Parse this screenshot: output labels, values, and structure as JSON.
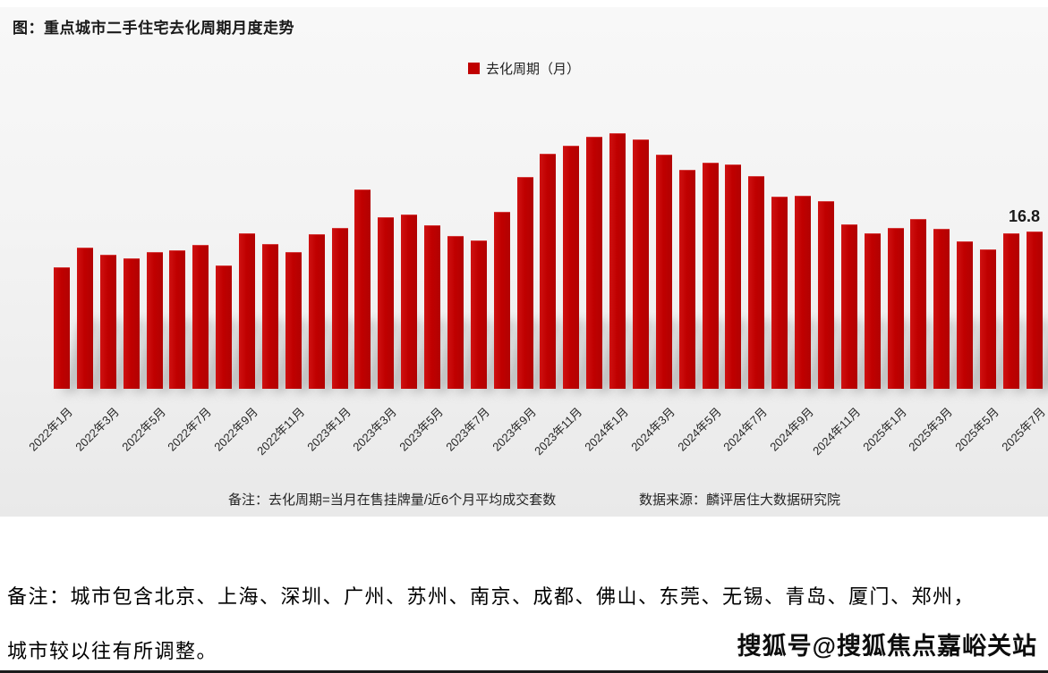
{
  "chart": {
    "title": "图：重点城市二手住宅去化周期月度走势",
    "legend_label": "去化周期（月）",
    "note_left": "备注：去化周期=当月在售挂牌量/近6个月平均成交套数",
    "source": "数据来源：麟评居住大数据研究院",
    "last_value_label": "16.8",
    "bar_color": "#c00000"
  },
  "chart_data": {
    "type": "bar",
    "title": "图：重点城市二手住宅去化周期月度走势",
    "series_name": "去化周期（月）",
    "x": [
      "2022年1月",
      "2022年2月",
      "2022年3月",
      "2022年4月",
      "2022年5月",
      "2022年6月",
      "2022年7月",
      "2022年8月",
      "2022年9月",
      "2022年10月",
      "2022年11月",
      "2022年12月",
      "2023年1月",
      "2023年2月",
      "2023年3月",
      "2023年4月",
      "2023年5月",
      "2023年6月",
      "2023年7月",
      "2023年8月",
      "2023年9月",
      "2023年10月",
      "2023年11月",
      "2023年12月",
      "2024年1月",
      "2024年2月",
      "2024年3月",
      "2024年4月",
      "2024年5月",
      "2024年6月",
      "2024年7月",
      "2024年8月",
      "2024年9月",
      "2024年10月",
      "2024年11月",
      "2024年12月",
      "2025年1月",
      "2025年2月",
      "2025年3月",
      "2025年4月",
      "2025年5月",
      "2025年6月",
      "2025年7月"
    ],
    "values": [
      13.0,
      15.1,
      14.3,
      13.9,
      14.6,
      14.8,
      15.4,
      13.2,
      16.6,
      15.5,
      14.6,
      16.5,
      17.2,
      21.3,
      18.4,
      18.7,
      17.5,
      16.3,
      15.9,
      18.9,
      22.7,
      25.2,
      26.1,
      27.0,
      27.4,
      26.7,
      25.1,
      23.5,
      24.2,
      24.0,
      22.8,
      20.6,
      20.7,
      20.1,
      17.6,
      16.6,
      17.2,
      18.2,
      17.1,
      15.8,
      14.9,
      16.6,
      16.8
    ],
    "x_tick_labels": [
      "2022年1月",
      "2022年3月",
      "2022年5月",
      "2022年7月",
      "2022年9月",
      "2022年11月",
      "2023年1月",
      "2023年3月",
      "2023年5月",
      "2023年7月",
      "2023年9月",
      "2023年11月",
      "2024年1月",
      "2024年3月",
      "2024年5月",
      "2024年7月",
      "2024年9月",
      "2024年11月",
      "2025年1月",
      "2025年3月",
      "2025年5月",
      "2025年7月"
    ],
    "ylim": [
      0,
      28.5
    ],
    "grid": false,
    "legend_position": "top-center",
    "bar_color": "#c00000",
    "annotation": {
      "text": "16.8",
      "x": "2025年7月"
    }
  },
  "document": {
    "note_line1": "备注：城市包含北京、上海、深圳、广州、苏州、南京、成都、佛山、东莞、无锡、青岛、厦门、郑州，",
    "note_line2": "城市较以往有所调整。",
    "watermark": "搜狐号@搜狐焦点嘉峪关站"
  }
}
